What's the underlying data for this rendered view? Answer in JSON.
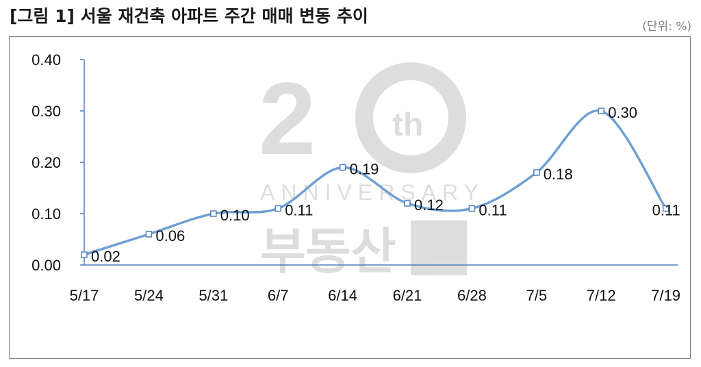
{
  "title": "[그림 1] 서울 재건축 아파트 주간 매매 변동 추이",
  "unit": "(단위: %)",
  "colors": {
    "line": "#6fa0d2",
    "axis": "#4f81bd",
    "marker_fill": "#ffffff"
  },
  "chart_data": {
    "type": "line",
    "title": "[그림 1] 서울 재건축 아파트 주간 매매 변동 추이",
    "xlabel": "",
    "ylabel": "",
    "categories": [
      "5/17",
      "5/24",
      "5/31",
      "6/7",
      "6/14",
      "6/21",
      "6/28",
      "7/5",
      "7/12",
      "7/19"
    ],
    "series": [
      {
        "values": [
          0.02,
          0.06,
          0.1,
          0.11,
          0.19,
          0.12,
          0.11,
          0.18,
          0.3,
          0.11
        ],
        "labels": [
          "0.02",
          "0.06",
          "0.10",
          "0.11",
          "0.19",
          "0.12",
          "0.11",
          "0.18",
          "0.30",
          "0.11"
        ]
      }
    ],
    "ylim": [
      0,
      0.4
    ],
    "yticks": [
      "0.00",
      "0.10",
      "0.20",
      "0.30",
      "0.40"
    ],
    "smooth": true,
    "grid": false,
    "legend": "none",
    "watermark": "20th ANNIVERSARY 부동산114"
  }
}
